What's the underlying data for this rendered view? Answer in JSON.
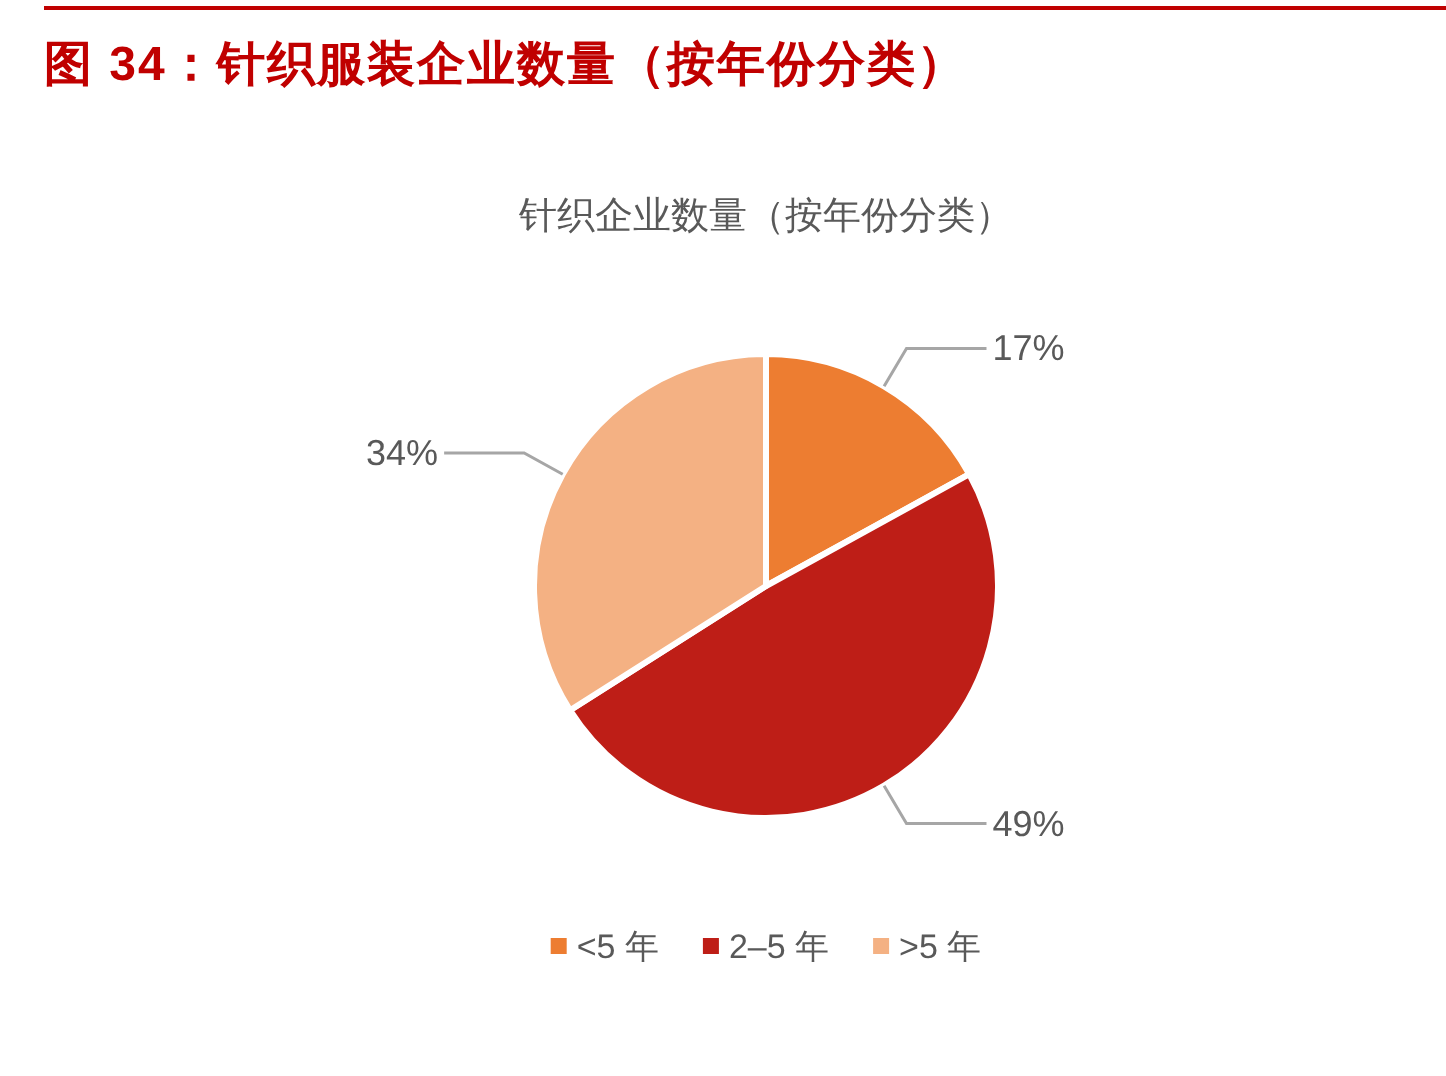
{
  "chart_data": {
    "type": "pie",
    "title": "图 34：针织服装企业数量（按年份分类）",
    "subtitle": "针织企业数量（按年份分类）",
    "categories": [
      "<5 年",
      "2–5 年",
      ">5 年"
    ],
    "values": [
      17,
      49,
      34
    ],
    "colors": [
      "#ed7d31",
      "#be1e17",
      "#f4b183"
    ],
    "value_labels": [
      "17%",
      "49%",
      "34%"
    ],
    "legend": "bottom"
  }
}
